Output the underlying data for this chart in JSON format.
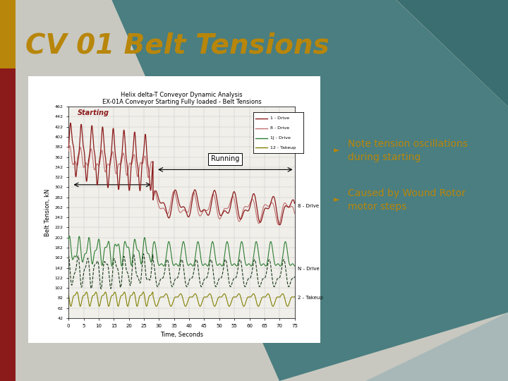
{
  "title": "CV 01 Belt Tensions",
  "title_color": "#B8860B",
  "title_fontsize": 28,
  "bg_left_color": "#C8C8C0",
  "bg_right_color": "#7A9A9A",
  "teal_top_color": "#4A7E80",
  "left_bar_color": "#8B1A1A",
  "white_box_color": "#FFFFFF",
  "chart_title1": "Helix delta-T Conveyor Dynamic Analysis",
  "chart_title2": "EX-01A Conveyor Starting Fully loaded - Belt Tensions",
  "ylabel": "Belt Tension, kN",
  "xlabel": "Time, Seconds",
  "bullet1": "Note tension oscillations\nduring starting",
  "bullet2": "Caused by Wound Rotor\nmotor steps",
  "bullet_color": "#B8860B",
  "bullet_fontsize": 10,
  "starting_label": "Starting",
  "running_label": "Running",
  "yticks": [
    42,
    62,
    82,
    102,
    122,
    142,
    162,
    182,
    202,
    222,
    242,
    262,
    282,
    302,
    322,
    342,
    362,
    382,
    402,
    422,
    442,
    462
  ],
  "xticks": [
    0,
    5,
    10,
    15,
    20,
    25,
    30,
    35,
    40,
    45,
    50,
    55,
    60,
    65,
    70,
    75
  ]
}
